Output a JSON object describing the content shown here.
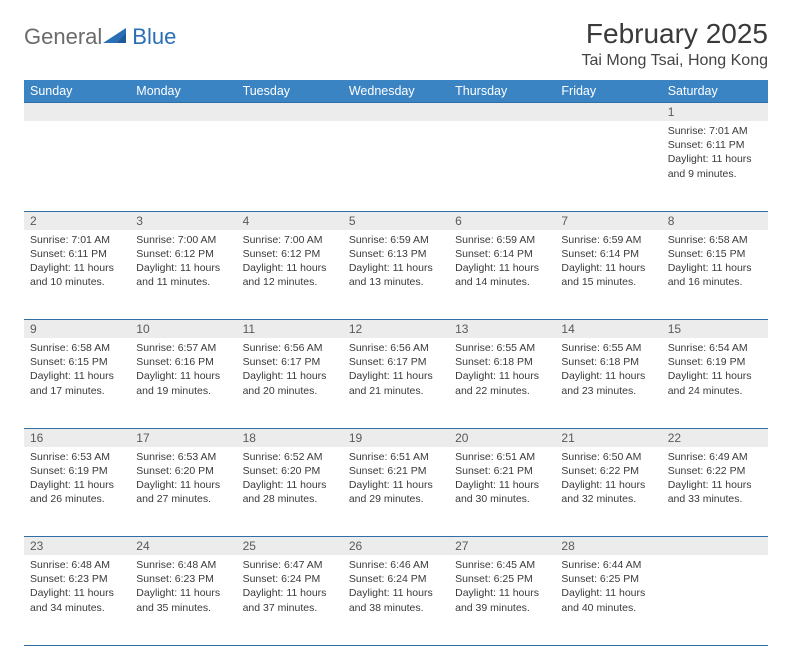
{
  "brand": {
    "part1": "General",
    "part2": "Blue",
    "text_color": "#6b6b6b",
    "accent_color": "#2a6fb5"
  },
  "title": "February 2025",
  "location": "Tai Mong Tsai, Hong Kong",
  "header_bg": "#3b84c4",
  "border_color": "#2f6fa8",
  "daynum_bg": "#ececec",
  "dayHeaders": [
    "Sunday",
    "Monday",
    "Tuesday",
    "Wednesday",
    "Thursday",
    "Friday",
    "Saturday"
  ],
  "weeks": [
    [
      null,
      null,
      null,
      null,
      null,
      null,
      {
        "n": "1",
        "sunrise": "7:01 AM",
        "sunset": "6:11 PM",
        "daylight": "11 hours and 9 minutes."
      }
    ],
    [
      {
        "n": "2",
        "sunrise": "7:01 AM",
        "sunset": "6:11 PM",
        "daylight": "11 hours and 10 minutes."
      },
      {
        "n": "3",
        "sunrise": "7:00 AM",
        "sunset": "6:12 PM",
        "daylight": "11 hours and 11 minutes."
      },
      {
        "n": "4",
        "sunrise": "7:00 AM",
        "sunset": "6:12 PM",
        "daylight": "11 hours and 12 minutes."
      },
      {
        "n": "5",
        "sunrise": "6:59 AM",
        "sunset": "6:13 PM",
        "daylight": "11 hours and 13 minutes."
      },
      {
        "n": "6",
        "sunrise": "6:59 AM",
        "sunset": "6:14 PM",
        "daylight": "11 hours and 14 minutes."
      },
      {
        "n": "7",
        "sunrise": "6:59 AM",
        "sunset": "6:14 PM",
        "daylight": "11 hours and 15 minutes."
      },
      {
        "n": "8",
        "sunrise": "6:58 AM",
        "sunset": "6:15 PM",
        "daylight": "11 hours and 16 minutes."
      }
    ],
    [
      {
        "n": "9",
        "sunrise": "6:58 AM",
        "sunset": "6:15 PM",
        "daylight": "11 hours and 17 minutes."
      },
      {
        "n": "10",
        "sunrise": "6:57 AM",
        "sunset": "6:16 PM",
        "daylight": "11 hours and 19 minutes."
      },
      {
        "n": "11",
        "sunrise": "6:56 AM",
        "sunset": "6:17 PM",
        "daylight": "11 hours and 20 minutes."
      },
      {
        "n": "12",
        "sunrise": "6:56 AM",
        "sunset": "6:17 PM",
        "daylight": "11 hours and 21 minutes."
      },
      {
        "n": "13",
        "sunrise": "6:55 AM",
        "sunset": "6:18 PM",
        "daylight": "11 hours and 22 minutes."
      },
      {
        "n": "14",
        "sunrise": "6:55 AM",
        "sunset": "6:18 PM",
        "daylight": "11 hours and 23 minutes."
      },
      {
        "n": "15",
        "sunrise": "6:54 AM",
        "sunset": "6:19 PM",
        "daylight": "11 hours and 24 minutes."
      }
    ],
    [
      {
        "n": "16",
        "sunrise": "6:53 AM",
        "sunset": "6:19 PM",
        "daylight": "11 hours and 26 minutes."
      },
      {
        "n": "17",
        "sunrise": "6:53 AM",
        "sunset": "6:20 PM",
        "daylight": "11 hours and 27 minutes."
      },
      {
        "n": "18",
        "sunrise": "6:52 AM",
        "sunset": "6:20 PM",
        "daylight": "11 hours and 28 minutes."
      },
      {
        "n": "19",
        "sunrise": "6:51 AM",
        "sunset": "6:21 PM",
        "daylight": "11 hours and 29 minutes."
      },
      {
        "n": "20",
        "sunrise": "6:51 AM",
        "sunset": "6:21 PM",
        "daylight": "11 hours and 30 minutes."
      },
      {
        "n": "21",
        "sunrise": "6:50 AM",
        "sunset": "6:22 PM",
        "daylight": "11 hours and 32 minutes."
      },
      {
        "n": "22",
        "sunrise": "6:49 AM",
        "sunset": "6:22 PM",
        "daylight": "11 hours and 33 minutes."
      }
    ],
    [
      {
        "n": "23",
        "sunrise": "6:48 AM",
        "sunset": "6:23 PM",
        "daylight": "11 hours and 34 minutes."
      },
      {
        "n": "24",
        "sunrise": "6:48 AM",
        "sunset": "6:23 PM",
        "daylight": "11 hours and 35 minutes."
      },
      {
        "n": "25",
        "sunrise": "6:47 AM",
        "sunset": "6:24 PM",
        "daylight": "11 hours and 37 minutes."
      },
      {
        "n": "26",
        "sunrise": "6:46 AM",
        "sunset": "6:24 PM",
        "daylight": "11 hours and 38 minutes."
      },
      {
        "n": "27",
        "sunrise": "6:45 AM",
        "sunset": "6:25 PM",
        "daylight": "11 hours and 39 minutes."
      },
      {
        "n": "28",
        "sunrise": "6:44 AM",
        "sunset": "6:25 PM",
        "daylight": "11 hours and 40 minutes."
      },
      null
    ]
  ],
  "labels": {
    "sunrise": "Sunrise: ",
    "sunset": "Sunset: ",
    "daylight": "Daylight: "
  }
}
